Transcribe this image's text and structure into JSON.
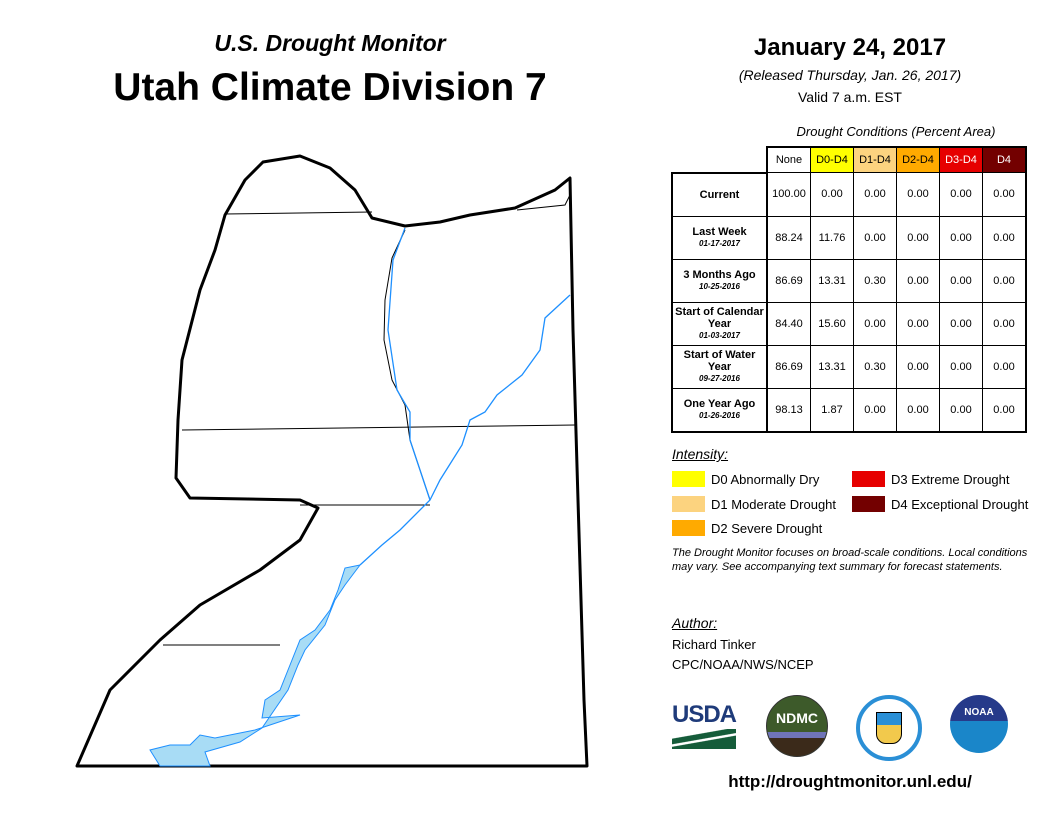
{
  "header": {
    "subtitle": "U.S. Drought Monitor",
    "title": "Utah Climate Division 7",
    "date": "January 24, 2017",
    "released": "(Released Thursday, Jan. 26, 2017)",
    "valid": "Valid 7 a.m. EST"
  },
  "table": {
    "caption": "Drought Conditions (Percent Area)",
    "columns": [
      {
        "label": "None",
        "bg": "#ffffff",
        "fg": "#000000"
      },
      {
        "label": "D0-D4",
        "bg": "#ffff00",
        "fg": "#000000"
      },
      {
        "label": "D1-D4",
        "bg": "#fcd37f",
        "fg": "#000000"
      },
      {
        "label": "D2-D4",
        "bg": "#ffaa00",
        "fg": "#000000"
      },
      {
        "label": "D3-D4",
        "bg": "#e60000",
        "fg": "#ffffff"
      },
      {
        "label": "D4",
        "bg": "#730000",
        "fg": "#ffffff"
      }
    ],
    "rows": [
      {
        "label": "Current",
        "date": "",
        "values": [
          "100.00",
          "0.00",
          "0.00",
          "0.00",
          "0.00",
          "0.00"
        ]
      },
      {
        "label": "Last Week",
        "date": "01-17-2017",
        "values": [
          "88.24",
          "11.76",
          "0.00",
          "0.00",
          "0.00",
          "0.00"
        ]
      },
      {
        "label": "3 Months Ago",
        "date": "10-25-2016",
        "values": [
          "86.69",
          "13.31",
          "0.30",
          "0.00",
          "0.00",
          "0.00"
        ]
      },
      {
        "label": "Start of Calendar Year",
        "date": "01-03-2017",
        "values": [
          "84.40",
          "15.60",
          "0.00",
          "0.00",
          "0.00",
          "0.00"
        ]
      },
      {
        "label": "Start of Water Year",
        "date": "09-27-2016",
        "values": [
          "86.69",
          "13.31",
          "0.30",
          "0.00",
          "0.00",
          "0.00"
        ]
      },
      {
        "label": "One Year Ago",
        "date": "01-26-2016",
        "values": [
          "98.13",
          "1.87",
          "0.00",
          "0.00",
          "0.00",
          "0.00"
        ]
      }
    ]
  },
  "legend": {
    "title": "Intensity:",
    "items": [
      {
        "label": "D0 Abnormally Dry",
        "color": "#ffff00"
      },
      {
        "label": "D1 Moderate Drought",
        "color": "#fcd37f"
      },
      {
        "label": "D2 Severe Drought",
        "color": "#ffaa00"
      },
      {
        "label": "D3 Extreme Drought",
        "color": "#e60000"
      },
      {
        "label": "D4 Exceptional Drought",
        "color": "#730000"
      }
    ]
  },
  "note": "The Drought Monitor focuses on broad-scale conditions. Local conditions may vary. See accompanying text summary for forecast statements.",
  "author": {
    "heading": "Author:",
    "name": "Richard Tinker",
    "org": "CPC/NOAA/NWS/NCEP"
  },
  "logos": {
    "usda": "USDA",
    "ndmc": "NDMC",
    "noaa": "NOAA"
  },
  "url": "http://droughtmonitor.unl.edu/"
}
